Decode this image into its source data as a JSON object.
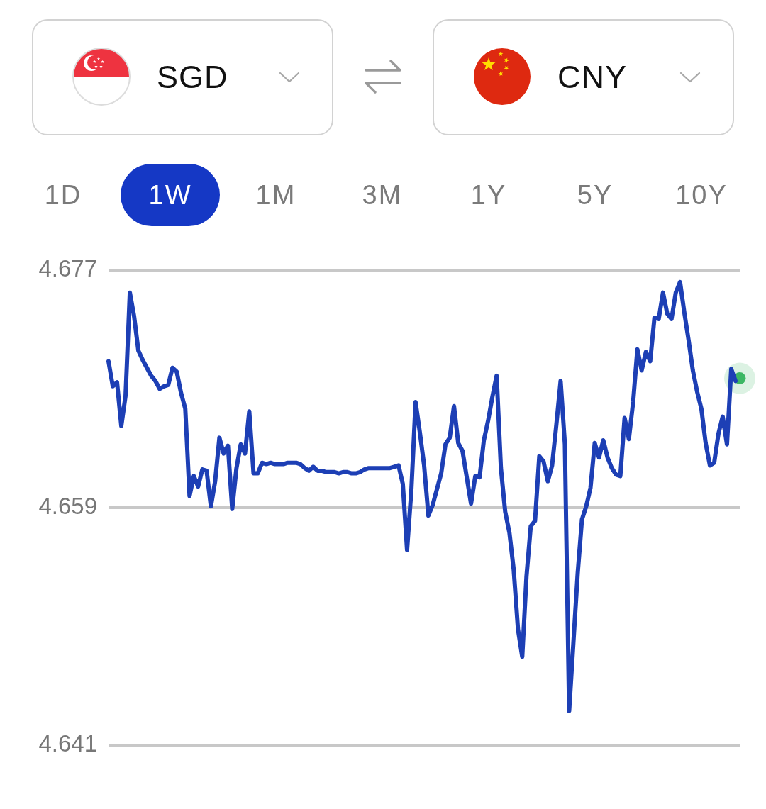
{
  "chart_data": {
    "type": "line",
    "categories": [
      null,
      null,
      null,
      null,
      null,
      null,
      null,
      null,
      null,
      null,
      null,
      null,
      null,
      null,
      null,
      null,
      null,
      null,
      null,
      null,
      null,
      null,
      null,
      null,
      null,
      null,
      null,
      null,
      null,
      null,
      null,
      null,
      null,
      null,
      null,
      null,
      null,
      null,
      null,
      null,
      null,
      null,
      null,
      null,
      null,
      null,
      null,
      null,
      null,
      null,
      null,
      null,
      null,
      null,
      null,
      null,
      null,
      null,
      null,
      null,
      null,
      null,
      null,
      null,
      null,
      null,
      null,
      null,
      null,
      null,
      null,
      null,
      null,
      null,
      null,
      null,
      null,
      null,
      null,
      null,
      null,
      null,
      null,
      null,
      null,
      null,
      null,
      null,
      null,
      null,
      null,
      null,
      null,
      null,
      null,
      null,
      null,
      null,
      null,
      null,
      null,
      null,
      null,
      null,
      null,
      null,
      null,
      null,
      null,
      null,
      null,
      null,
      null,
      null,
      null,
      null,
      null,
      null,
      null,
      null,
      null,
      null,
      null,
      null,
      null,
      null,
      null,
      null,
      null,
      null,
      null,
      null,
      null,
      null,
      null,
      null,
      null,
      null,
      null,
      null,
      null,
      null,
      null,
      null,
      null,
      null,
      null,
      null,
      null
    ],
    "series": [
      {
        "color": "#1d3fb5",
        "values": [
          4.6701,
          4.6682,
          4.6685,
          4.6652,
          4.6675,
          4.6753,
          4.6735,
          4.6709,
          4.6702,
          4.6696,
          4.669,
          4.6686,
          4.668,
          4.6682,
          4.6683,
          4.6696,
          4.6693,
          4.6677,
          4.6665,
          4.6599,
          4.6614,
          4.6606,
          4.6619,
          4.6618,
          4.6591,
          4.661,
          4.6643,
          4.6631,
          4.6637,
          4.6589,
          4.662,
          4.6638,
          4.6631,
          4.6663,
          4.6616,
          4.6616,
          4.6624,
          4.6623,
          4.6624,
          4.6623,
          4.6623,
          4.6623,
          4.6624,
          4.6624,
          4.6624,
          4.6623,
          4.662,
          4.6618,
          4.6621,
          4.6618,
          4.6618,
          4.6617,
          4.6617,
          4.6617,
          4.6616,
          4.6617,
          4.6617,
          4.6616,
          4.6616,
          4.6617,
          4.6619,
          4.662,
          4.662,
          4.662,
          4.662,
          4.662,
          4.662,
          4.6621,
          4.6622,
          4.6608,
          4.6558,
          4.6603,
          4.667,
          4.6647,
          4.6622,
          4.6584,
          4.6592,
          4.6604,
          4.6616,
          4.6638,
          4.6643,
          4.6667,
          4.6639,
          4.6633,
          4.6613,
          4.6593,
          4.6614,
          4.6613,
          4.6641,
          4.6656,
          4.6674,
          4.669,
          4.662,
          4.6587,
          4.6571,
          4.6543,
          4.6498,
          4.6477,
          4.6538,
          4.6576,
          4.658,
          4.6629,
          4.6625,
          4.661,
          4.6622,
          4.6653,
          4.6686,
          4.6638,
          4.6436,
          4.6488,
          4.654,
          4.6581,
          4.6591,
          4.6605,
          4.6639,
          4.6628,
          4.6641,
          4.6628,
          4.662,
          4.6615,
          4.6614,
          4.6658,
          4.6642,
          4.667,
          4.671,
          4.6694,
          4.6708,
          4.6701,
          4.6734,
          4.6733,
          4.6753,
          4.6737,
          4.6733,
          4.6753,
          4.6761,
          4.6738,
          4.6717,
          4.6694,
          4.6678,
          4.6665,
          4.6639,
          4.6622,
          4.6624,
          4.6646,
          4.6659,
          4.6638,
          4.6695,
          4.6686,
          null
        ]
      },
      {
        "type": "scatter",
        "color": "#3cb764",
        "marker": "circle",
        "values": [
          null,
          null,
          null,
          null,
          null,
          null,
          null,
          null,
          null,
          null,
          null,
          null,
          null,
          null,
          null,
          null,
          null,
          null,
          null,
          null,
          null,
          null,
          null,
          null,
          null,
          null,
          null,
          null,
          null,
          null,
          null,
          null,
          null,
          null,
          null,
          null,
          null,
          null,
          null,
          null,
          null,
          null,
          null,
          null,
          null,
          null,
          null,
          null,
          null,
          null,
          null,
          null,
          null,
          null,
          null,
          null,
          null,
          null,
          null,
          null,
          null,
          null,
          null,
          null,
          null,
          null,
          null,
          null,
          null,
          null,
          null,
          null,
          null,
          null,
          null,
          null,
          null,
          null,
          null,
          null,
          null,
          null,
          null,
          null,
          null,
          null,
          null,
          null,
          null,
          null,
          null,
          null,
          null,
          null,
          null,
          null,
          null,
          null,
          null,
          null,
          null,
          null,
          null,
          null,
          null,
          null,
          null,
          null,
          null,
          null,
          null,
          null,
          null,
          null,
          null,
          null,
          null,
          null,
          null,
          null,
          null,
          null,
          null,
          null,
          null,
          null,
          null,
          null,
          null,
          null,
          null,
          null,
          null,
          null,
          null,
          null,
          null,
          null,
          null,
          null,
          null,
          null,
          null,
          null,
          null,
          null,
          null,
          null,
          4.6688
        ]
      }
    ],
    "ylim": [
      4.641,
      4.677
    ],
    "yticks": [
      4.641,
      4.659,
      4.677
    ],
    "grid": "y",
    "tick_labels": "y",
    "line_style": "solid",
    "annotations": [
      "SGD",
      "CNY",
      "1D",
      "1W",
      "1M",
      "3M",
      "1Y",
      "5Y",
      "10Y"
    ]
  }
}
